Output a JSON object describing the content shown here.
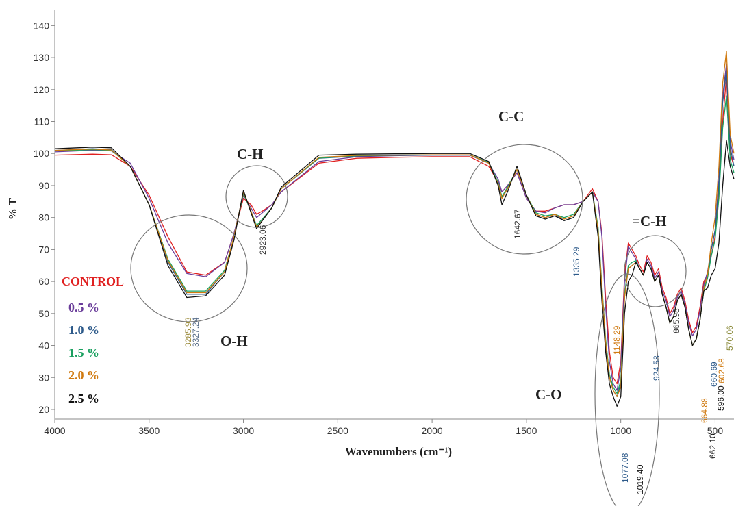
{
  "chart_data": {
    "type": "line",
    "title": "",
    "xlabel": "Wavenumbers (cm⁻¹)",
    "ylabel": "% T",
    "xlim": [
      4000,
      400
    ],
    "ylim": [
      17,
      145
    ],
    "x_ticks": [
      4000,
      3500,
      3000,
      2500,
      2000,
      1500,
      1000,
      500
    ],
    "y_ticks": [
      20,
      30,
      40,
      50,
      60,
      70,
      80,
      90,
      100,
      110,
      120,
      130,
      140
    ],
    "legend": {
      "placement": "left",
      "entries": [
        {
          "label": "CONTROL",
          "color": "#e02020"
        },
        {
          "label": "0.5 %",
          "color": "#6a3d9a"
        },
        {
          "label": "1.0 %",
          "color": "#2d5a8a"
        },
        {
          "label": "1.5 %",
          "color": "#1aa060"
        },
        {
          "label": "2.0 %",
          "color": "#d07a10"
        },
        {
          "label": "2.5 %",
          "color": "#111111"
        }
      ]
    },
    "series": [
      {
        "color": "#e02020",
        "x": [
          4000,
          3800,
          3700,
          3600,
          3500,
          3400,
          3300,
          3200,
          3100,
          3050,
          3000,
          2960,
          2930,
          2900,
          2850,
          2800,
          2600,
          2400,
          2200,
          2000,
          1800,
          1700,
          1650,
          1630,
          1600,
          1550,
          1500,
          1450,
          1400,
          1350,
          1300,
          1250,
          1200,
          1150,
          1120,
          1100,
          1080,
          1060,
          1040,
          1020,
          1000,
          980,
          960,
          940,
          920,
          900,
          880,
          860,
          840,
          820,
          800,
          780,
          760,
          740,
          720,
          700,
          680,
          660,
          640,
          620,
          600,
          580,
          560,
          540,
          520,
          500,
          480,
          460,
          440,
          420,
          400
        ],
        "y": [
          99.5,
          99.8,
          99.6,
          96,
          87,
          74,
          63,
          62,
          66,
          75,
          86,
          84,
          81,
          82,
          84,
          88,
          97,
          98.5,
          98.8,
          99,
          99,
          96,
          91,
          88,
          90,
          94,
          86,
          82,
          82,
          83,
          84,
          84,
          85,
          89,
          85,
          75,
          55,
          38,
          30,
          28,
          35,
          62,
          72,
          70,
          68,
          65,
          63,
          68,
          66,
          62,
          64,
          58,
          55,
          50,
          52,
          56,
          58,
          54,
          48,
          44,
          46,
          52,
          60,
          62,
          68,
          74,
          88,
          110,
          124,
          100,
          96
        ]
      },
      {
        "color": "#6a3d9a",
        "x": [
          4000,
          3800,
          3700,
          3600,
          3500,
          3400,
          3300,
          3200,
          3100,
          3050,
          3000,
          2960,
          2930,
          2900,
          2850,
          2800,
          2600,
          2400,
          2200,
          2000,
          1800,
          1700,
          1650,
          1630,
          1600,
          1550,
          1500,
          1450,
          1400,
          1350,
          1300,
          1250,
          1200,
          1150,
          1120,
          1100,
          1080,
          1060,
          1040,
          1020,
          1000,
          980,
          960,
          940,
          920,
          900,
          880,
          860,
          840,
          820,
          800,
          780,
          760,
          740,
          720,
          700,
          680,
          660,
          640,
          620,
          600,
          580,
          560,
          540,
          520,
          500,
          480,
          460,
          440,
          420,
          400
        ],
        "y": [
          100.5,
          101,
          100.8,
          97,
          86,
          72,
          62.5,
          61.5,
          66,
          75,
          87,
          83,
          80,
          81.5,
          84,
          88,
          97.5,
          99,
          99.3,
          99.5,
          99.5,
          97,
          92,
          88,
          90,
          94,
          86,
          82,
          81.5,
          83,
          84,
          84,
          85,
          88,
          85,
          74,
          52,
          35,
          28,
          26,
          33,
          60,
          71,
          69,
          67,
          64,
          62,
          67,
          65,
          61,
          63,
          57,
          54,
          49,
          51,
          55,
          57,
          53,
          47,
          43,
          45,
          51,
          59,
          63,
          70,
          76,
          92,
          118,
          128,
          104,
          98
        ]
      },
      {
        "color": "#2d5a8a",
        "x": [
          4000,
          3800,
          3700,
          3600,
          3500,
          3400,
          3300,
          3200,
          3100,
          3050,
          3000,
          2960,
          2930,
          2900,
          2850,
          2800,
          2600,
          2400,
          2200,
          2000,
          1800,
          1700,
          1650,
          1630,
          1600,
          1550,
          1500,
          1450,
          1400,
          1350,
          1300,
          1250,
          1200,
          1150,
          1120,
          1100,
          1080,
          1060,
          1040,
          1020,
          1000,
          980,
          960,
          940,
          920,
          900,
          880,
          860,
          840,
          820,
          800,
          780,
          760,
          740,
          720,
          700,
          680,
          660,
          640,
          620,
          600,
          580,
          560,
          540,
          520,
          500,
          480,
          460,
          440,
          420,
          400
        ],
        "y": [
          101,
          101.5,
          101.2,
          96,
          84,
          66,
          56,
          56,
          63,
          74,
          88,
          82,
          77,
          79,
          83,
          89,
          98.5,
          99.2,
          99.4,
          99.5,
          99.5,
          97,
          91,
          86,
          89,
          95,
          87,
          81,
          80,
          81,
          79,
          80,
          85,
          88,
          76,
          58,
          40,
          30,
          26,
          24,
          28,
          55,
          64,
          65,
          66,
          64,
          62,
          66,
          64,
          60,
          62,
          56,
          52,
          47,
          49,
          54,
          56,
          52,
          45,
          40,
          42,
          48,
          58,
          62,
          70,
          76,
          90,
          116,
          126,
          102,
          96
        ]
      },
      {
        "color": "#1aa060",
        "x": [
          4000,
          3800,
          3700,
          3600,
          3500,
          3400,
          3300,
          3200,
          3100,
          3050,
          3000,
          2960,
          2930,
          2900,
          2850,
          2800,
          2600,
          2400,
          2200,
          2000,
          1800,
          1700,
          1650,
          1630,
          1600,
          1550,
          1500,
          1450,
          1400,
          1350,
          1300,
          1250,
          1200,
          1150,
          1120,
          1100,
          1080,
          1060,
          1040,
          1020,
          1000,
          980,
          960,
          940,
          920,
          900,
          880,
          860,
          840,
          820,
          800,
          780,
          760,
          740,
          720,
          700,
          680,
          660,
          640,
          620,
          600,
          580,
          560,
          540,
          520,
          500,
          480,
          460,
          440,
          420,
          400
        ],
        "y": [
          100.8,
          101.2,
          101,
          96,
          84,
          67,
          57,
          57,
          63.5,
          74,
          87.5,
          82,
          77.5,
          79.5,
          83,
          89,
          98.6,
          99.3,
          99.5,
          99.6,
          99.6,
          97.2,
          91,
          86.5,
          89.5,
          95,
          87,
          81.5,
          80.5,
          81,
          80,
          81,
          85,
          88,
          77,
          59,
          42,
          31,
          27,
          25,
          29,
          56,
          65,
          66,
          66.5,
          64,
          62,
          66,
          64,
          60,
          62,
          56,
          52,
          47,
          49,
          54,
          56,
          52,
          45,
          40,
          42,
          48,
          57,
          61,
          68,
          73,
          86,
          108,
          118,
          98,
          94
        ]
      },
      {
        "color": "#d07a10",
        "x": [
          4000,
          3800,
          3700,
          3600,
          3500,
          3400,
          3300,
          3200,
          3100,
          3050,
          3000,
          2960,
          2930,
          2900,
          2850,
          2800,
          2600,
          2400,
          2200,
          2000,
          1800,
          1700,
          1650,
          1630,
          1600,
          1550,
          1500,
          1450,
          1400,
          1350,
          1300,
          1250,
          1200,
          1150,
          1120,
          1100,
          1080,
          1060,
          1040,
          1020,
          1000,
          980,
          960,
          940,
          920,
          900,
          880,
          860,
          840,
          820,
          800,
          780,
          760,
          740,
          720,
          700,
          680,
          660,
          640,
          620,
          600,
          580,
          560,
          540,
          520,
          500,
          480,
          460,
          440,
          420,
          400
        ],
        "y": [
          101,
          101.4,
          101.1,
          96,
          84,
          66.5,
          56.5,
          56.5,
          63,
          74,
          88,
          82,
          77,
          79,
          83,
          89,
          98.8,
          99.4,
          99.5,
          99.6,
          99.6,
          97,
          90.5,
          86,
          89,
          95,
          87,
          81,
          80,
          81,
          79.5,
          80.5,
          85,
          88,
          76,
          58,
          41,
          30,
          26,
          24,
          27,
          55,
          64,
          65,
          66,
          64,
          62,
          66,
          64,
          60,
          62,
          56,
          52,
          47,
          49,
          54,
          56,
          52,
          45,
          40,
          42,
          48,
          58,
          62,
          72,
          80,
          96,
          122,
          132,
          106,
          100
        ]
      },
      {
        "color": "#111111",
        "x": [
          4000,
          3800,
          3700,
          3600,
          3500,
          3400,
          3300,
          3200,
          3100,
          3050,
          3000,
          2960,
          2930,
          2900,
          2850,
          2800,
          2600,
          2400,
          2200,
          2000,
          1800,
          1700,
          1650,
          1630,
          1600,
          1550,
          1500,
          1450,
          1400,
          1350,
          1300,
          1250,
          1200,
          1150,
          1120,
          1100,
          1080,
          1060,
          1040,
          1020,
          1000,
          980,
          960,
          940,
          920,
          900,
          880,
          860,
          840,
          820,
          800,
          780,
          760,
          740,
          720,
          700,
          680,
          660,
          640,
          620,
          600,
          580,
          560,
          540,
          520,
          500,
          480,
          460,
          440,
          420,
          400
        ],
        "y": [
          101.5,
          102,
          101.8,
          96,
          84,
          65,
          55,
          55.5,
          62,
          73,
          88.5,
          81.5,
          76.5,
          79,
          83,
          89.5,
          99.5,
          99.8,
          99.9,
          100,
          100,
          97.5,
          90,
          84,
          88,
          96,
          87,
          80.5,
          79.5,
          80.5,
          79,
          80,
          85,
          88,
          74,
          54,
          38,
          28,
          24,
          21,
          24,
          50,
          60,
          62,
          66,
          64,
          62,
          66,
          64,
          60,
          62,
          56,
          52,
          47,
          49,
          54,
          56,
          52,
          45,
          40,
          42,
          48,
          57,
          58,
          62,
          64,
          72,
          90,
          104,
          96,
          92
        ]
      }
    ],
    "annotations": {
      "groups": [
        {
          "text": "O-H"
        },
        {
          "text": "C-H"
        },
        {
          "text": "C-C"
        },
        {
          "text": "C-O"
        },
        {
          "text": "=C-H"
        }
      ],
      "peaks": [
        {
          "text": "3327.24",
          "color": "#5a6f8a"
        },
        {
          "text": "3285.93",
          "color": "#9a8a3a"
        },
        {
          "text": "2923.06",
          "color": "#333333"
        },
        {
          "text": "1642.67",
          "color": "#333333"
        },
        {
          "text": "1335.29",
          "color": "#2d5a8a"
        },
        {
          "text": "1148.29",
          "color": "#d07a10"
        },
        {
          "text": "1077.08",
          "color": "#2d5a8a"
        },
        {
          "text": "1019.40",
          "color": "#111111"
        },
        {
          "text": "924.58",
          "color": "#2d5a8a"
        },
        {
          "text": "865.98",
          "color": "#333333"
        },
        {
          "text": "662.10",
          "color": "#111111"
        },
        {
          "text": "660.69",
          "color": "#2d5a8a"
        },
        {
          "text": "664.88",
          "color": "#d07a10"
        },
        {
          "text": "596.00",
          "color": "#111111"
        },
        {
          "text": "602.68",
          "color": "#d07a10"
        },
        {
          "text": "570.06",
          "color": "#8a8a3a"
        }
      ]
    }
  }
}
